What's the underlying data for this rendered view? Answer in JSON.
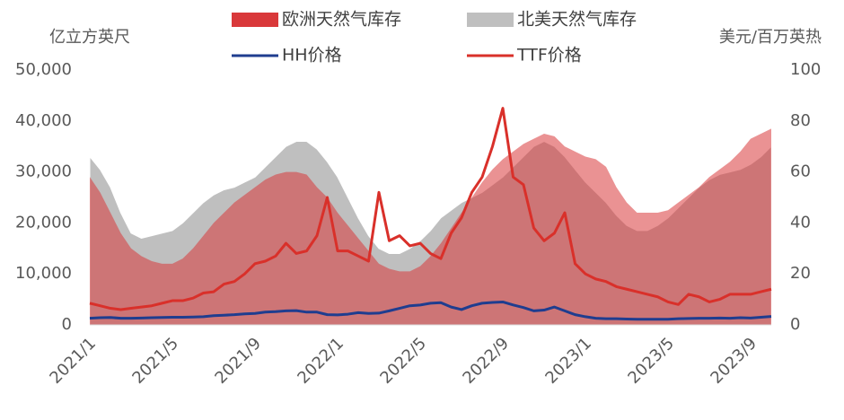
{
  "chart_data": {
    "type": "combo",
    "y_label": "亿立方英尺",
    "y2_label": "美元/百万英热",
    "categories": [
      "2021/1",
      null,
      null,
      null,
      null,
      null,
      null,
      null,
      "2021/5",
      null,
      null,
      null,
      null,
      null,
      null,
      null,
      "2021/9",
      null,
      null,
      null,
      null,
      null,
      null,
      null,
      "2022/1",
      null,
      null,
      null,
      null,
      null,
      null,
      null,
      "2022/5",
      null,
      null,
      null,
      null,
      null,
      null,
      null,
      "2022/9",
      null,
      null,
      null,
      null,
      null,
      null,
      null,
      "2023/1",
      null,
      null,
      null,
      null,
      null,
      null,
      null,
      "2023/5",
      null,
      null,
      null,
      null,
      null,
      null,
      null,
      "2023/9",
      null,
      null
    ],
    "ylim": [
      0,
      50000
    ],
    "yticks": [
      0,
      {
        "value": 10000,
        "label": "10,000"
      },
      {
        "value": 20000,
        "label": "20,000"
      },
      {
        "value": 30000,
        "label": "30,000"
      },
      {
        "value": 40000,
        "label": "40,000"
      },
      {
        "value": 50000,
        "label": "50,000"
      }
    ],
    "y2lim": [
      0,
      100
    ],
    "y2ticks": [
      0,
      20,
      40,
      60,
      80,
      100
    ],
    "series": [
      {
        "name": "北美天然气库存",
        "type": "area",
        "color": "#bfbfbf",
        "values": [
          33000,
          30500,
          27000,
          22000,
          18000,
          17000,
          17500,
          18000,
          18500,
          20000,
          22000,
          24000,
          25500,
          26500,
          27000,
          28000,
          29000,
          31000,
          33000,
          35000,
          36000,
          36000,
          34500,
          32000,
          29000,
          25000,
          21000,
          17500,
          15000,
          14000,
          14000,
          15000,
          16500,
          18500,
          21000,
          22500,
          24000,
          25000,
          26000,
          27500,
          29000,
          31000,
          33000,
          35000,
          36000,
          35000,
          33000,
          30500,
          28000,
          26000,
          24000,
          21500,
          19500,
          18500,
          18500,
          19500,
          21000,
          23000,
          25000,
          27000,
          28500,
          29500,
          30000,
          30500,
          31500,
          33000,
          35000
        ]
      },
      {
        "name": "欧洲天然气库存",
        "type": "area",
        "color": "#d9383a",
        "values": [
          29000,
          26000,
          22000,
          18000,
          15000,
          13500,
          12500,
          12000,
          12000,
          13000,
          15000,
          17500,
          20000,
          22000,
          24000,
          25500,
          27000,
          28500,
          29500,
          30000,
          30000,
          29500,
          27000,
          25000,
          22000,
          19500,
          17000,
          14500,
          12000,
          11000,
          10500,
          10500,
          11500,
          13500,
          16000,
          19000,
          22000,
          25000,
          28000,
          30500,
          32500,
          34000,
          35500,
          36500,
          37500,
          37000,
          35000,
          34000,
          33000,
          32500,
          31000,
          27000,
          24000,
          22000,
          22000,
          22000,
          22500,
          24000,
          25500,
          27000,
          29000,
          30500,
          32000,
          34000,
          36500,
          37500,
          38500
        ]
      },
      {
        "name": "HH价格",
        "type": "line",
        "axis": "y2",
        "color": "#1f3d8f",
        "values": [
          2.6,
          2.8,
          2.9,
          2.6,
          2.6,
          2.7,
          2.8,
          2.9,
          3.0,
          3.0,
          3.1,
          3.2,
          3.6,
          3.8,
          4.0,
          4.3,
          4.5,
          5.0,
          5.2,
          5.5,
          5.6,
          5.0,
          5.0,
          4.0,
          3.9,
          4.2,
          4.8,
          4.5,
          4.6,
          5.5,
          6.5,
          7.5,
          7.8,
          8.5,
          8.7,
          7.0,
          6.0,
          7.5,
          8.5,
          8.8,
          9.0,
          7.8,
          6.8,
          5.5,
          5.8,
          7.0,
          5.5,
          4.0,
          3.2,
          2.6,
          2.4,
          2.4,
          2.3,
          2.2,
          2.2,
          2.2,
          2.2,
          2.4,
          2.5,
          2.6,
          2.6,
          2.7,
          2.6,
          2.8,
          2.7,
          3.0,
          3.3
        ]
      },
      {
        "name": "TTF价格",
        "type": "line",
        "axis": "y2",
        "color": "#d9302a",
        "values": [
          8.5,
          7.5,
          6.5,
          6.0,
          6.5,
          7,
          7.5,
          8.5,
          9.5,
          9.5,
          10.5,
          12.5,
          13,
          16,
          17,
          20,
          24,
          25,
          27,
          32,
          28,
          29,
          35,
          50,
          29,
          29,
          27,
          25,
          52,
          33,
          35,
          31,
          32,
          28,
          26,
          36,
          42,
          52,
          58,
          70,
          85,
          58,
          55,
          38,
          33,
          36,
          44,
          24,
          20,
          18,
          17,
          15,
          14,
          13,
          12,
          11,
          9,
          8,
          12,
          11,
          9,
          10,
          12,
          12,
          12,
          13,
          14
        ]
      }
    ]
  }
}
